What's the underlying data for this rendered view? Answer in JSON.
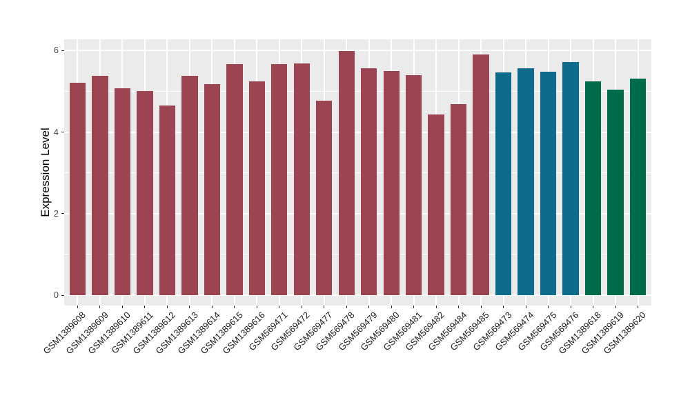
{
  "chart_data": {
    "type": "bar",
    "title": "",
    "xlabel": "",
    "ylabel": "Expression Level",
    "ylim": [
      0,
      6.3
    ],
    "yticks": [
      0,
      2,
      4,
      6
    ],
    "yticks_minor": [
      1,
      3,
      5
    ],
    "grid": true,
    "legend_position": "none",
    "panel_background": "#EBEBEB",
    "gridline_color": "#FFFFFF",
    "tick_mark_color": "#333333",
    "axis_text_color": "#4d4d4d",
    "categories": [
      "GSM1389608",
      "GSM1389609",
      "GSM1389610",
      "GSM1389611",
      "GSM1389612",
      "GSM1389613",
      "GSM1389614",
      "GSM1389615",
      "GSM1389616",
      "GSM569471",
      "GSM569472",
      "GSM569477",
      "GSM569478",
      "GSM569479",
      "GSM569480",
      "GSM569481",
      "GSM569482",
      "GSM569484",
      "GSM569485",
      "GSM569473",
      "GSM569474",
      "GSM569475",
      "GSM569476",
      "GSM1389618",
      "GSM1389619",
      "GSM1389620"
    ],
    "values": [
      5.21,
      5.38,
      5.08,
      5.01,
      4.66,
      5.38,
      5.18,
      5.66,
      5.25,
      5.67,
      5.69,
      4.78,
      5.99,
      5.57,
      5.5,
      5.4,
      4.43,
      4.69,
      5.91,
      5.47,
      5.57,
      5.49,
      5.72,
      5.24,
      5.04,
      5.31
    ],
    "bar_groups": [
      "group1",
      "group1",
      "group1",
      "group1",
      "group1",
      "group1",
      "group1",
      "group1",
      "group1",
      "group1",
      "group1",
      "group1",
      "group1",
      "group1",
      "group1",
      "group1",
      "group1",
      "group1",
      "group1",
      "group2",
      "group2",
      "group2",
      "group2",
      "group3",
      "group3",
      "group3"
    ],
    "colors": {
      "group1": "#9D4452",
      "group2": "#0E6B8C",
      "group3": "#006B4A"
    }
  }
}
